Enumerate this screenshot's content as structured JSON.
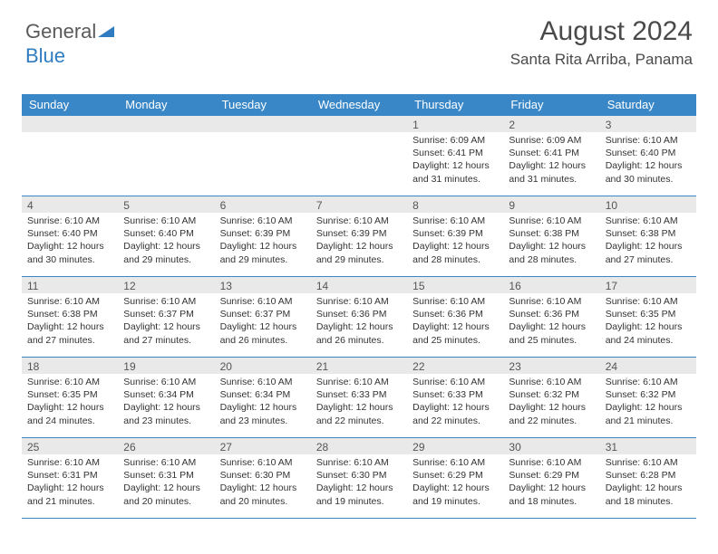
{
  "logo": {
    "text1": "General",
    "text2": "Blue",
    "triangle_color": "#2f7dc0"
  },
  "header": {
    "title": "August 2024",
    "location": "Santa Rita Arriba, Panama"
  },
  "colors": {
    "header_bar": "#3a87c7",
    "daynum_band": "#e9e9e9",
    "row_border": "#3a87c7",
    "text": "#333333"
  },
  "days_of_week": [
    "Sunday",
    "Monday",
    "Tuesday",
    "Wednesday",
    "Thursday",
    "Friday",
    "Saturday"
  ],
  "weeks": [
    [
      {
        "n": "",
        "sr": "",
        "ss": "",
        "dl": ""
      },
      {
        "n": "",
        "sr": "",
        "ss": "",
        "dl": ""
      },
      {
        "n": "",
        "sr": "",
        "ss": "",
        "dl": ""
      },
      {
        "n": "",
        "sr": "",
        "ss": "",
        "dl": ""
      },
      {
        "n": "1",
        "sr": "Sunrise: 6:09 AM",
        "ss": "Sunset: 6:41 PM",
        "dl": "Daylight: 12 hours and 31 minutes."
      },
      {
        "n": "2",
        "sr": "Sunrise: 6:09 AM",
        "ss": "Sunset: 6:41 PM",
        "dl": "Daylight: 12 hours and 31 minutes."
      },
      {
        "n": "3",
        "sr": "Sunrise: 6:10 AM",
        "ss": "Sunset: 6:40 PM",
        "dl": "Daylight: 12 hours and 30 minutes."
      }
    ],
    [
      {
        "n": "4",
        "sr": "Sunrise: 6:10 AM",
        "ss": "Sunset: 6:40 PM",
        "dl": "Daylight: 12 hours and 30 minutes."
      },
      {
        "n": "5",
        "sr": "Sunrise: 6:10 AM",
        "ss": "Sunset: 6:40 PM",
        "dl": "Daylight: 12 hours and 29 minutes."
      },
      {
        "n": "6",
        "sr": "Sunrise: 6:10 AM",
        "ss": "Sunset: 6:39 PM",
        "dl": "Daylight: 12 hours and 29 minutes."
      },
      {
        "n": "7",
        "sr": "Sunrise: 6:10 AM",
        "ss": "Sunset: 6:39 PM",
        "dl": "Daylight: 12 hours and 29 minutes."
      },
      {
        "n": "8",
        "sr": "Sunrise: 6:10 AM",
        "ss": "Sunset: 6:39 PM",
        "dl": "Daylight: 12 hours and 28 minutes."
      },
      {
        "n": "9",
        "sr": "Sunrise: 6:10 AM",
        "ss": "Sunset: 6:38 PM",
        "dl": "Daylight: 12 hours and 28 minutes."
      },
      {
        "n": "10",
        "sr": "Sunrise: 6:10 AM",
        "ss": "Sunset: 6:38 PM",
        "dl": "Daylight: 12 hours and 27 minutes."
      }
    ],
    [
      {
        "n": "11",
        "sr": "Sunrise: 6:10 AM",
        "ss": "Sunset: 6:38 PM",
        "dl": "Daylight: 12 hours and 27 minutes."
      },
      {
        "n": "12",
        "sr": "Sunrise: 6:10 AM",
        "ss": "Sunset: 6:37 PM",
        "dl": "Daylight: 12 hours and 27 minutes."
      },
      {
        "n": "13",
        "sr": "Sunrise: 6:10 AM",
        "ss": "Sunset: 6:37 PM",
        "dl": "Daylight: 12 hours and 26 minutes."
      },
      {
        "n": "14",
        "sr": "Sunrise: 6:10 AM",
        "ss": "Sunset: 6:36 PM",
        "dl": "Daylight: 12 hours and 26 minutes."
      },
      {
        "n": "15",
        "sr": "Sunrise: 6:10 AM",
        "ss": "Sunset: 6:36 PM",
        "dl": "Daylight: 12 hours and 25 minutes."
      },
      {
        "n": "16",
        "sr": "Sunrise: 6:10 AM",
        "ss": "Sunset: 6:36 PM",
        "dl": "Daylight: 12 hours and 25 minutes."
      },
      {
        "n": "17",
        "sr": "Sunrise: 6:10 AM",
        "ss": "Sunset: 6:35 PM",
        "dl": "Daylight: 12 hours and 24 minutes."
      }
    ],
    [
      {
        "n": "18",
        "sr": "Sunrise: 6:10 AM",
        "ss": "Sunset: 6:35 PM",
        "dl": "Daylight: 12 hours and 24 minutes."
      },
      {
        "n": "19",
        "sr": "Sunrise: 6:10 AM",
        "ss": "Sunset: 6:34 PM",
        "dl": "Daylight: 12 hours and 23 minutes."
      },
      {
        "n": "20",
        "sr": "Sunrise: 6:10 AM",
        "ss": "Sunset: 6:34 PM",
        "dl": "Daylight: 12 hours and 23 minutes."
      },
      {
        "n": "21",
        "sr": "Sunrise: 6:10 AM",
        "ss": "Sunset: 6:33 PM",
        "dl": "Daylight: 12 hours and 22 minutes."
      },
      {
        "n": "22",
        "sr": "Sunrise: 6:10 AM",
        "ss": "Sunset: 6:33 PM",
        "dl": "Daylight: 12 hours and 22 minutes."
      },
      {
        "n": "23",
        "sr": "Sunrise: 6:10 AM",
        "ss": "Sunset: 6:32 PM",
        "dl": "Daylight: 12 hours and 22 minutes."
      },
      {
        "n": "24",
        "sr": "Sunrise: 6:10 AM",
        "ss": "Sunset: 6:32 PM",
        "dl": "Daylight: 12 hours and 21 minutes."
      }
    ],
    [
      {
        "n": "25",
        "sr": "Sunrise: 6:10 AM",
        "ss": "Sunset: 6:31 PM",
        "dl": "Daylight: 12 hours and 21 minutes."
      },
      {
        "n": "26",
        "sr": "Sunrise: 6:10 AM",
        "ss": "Sunset: 6:31 PM",
        "dl": "Daylight: 12 hours and 20 minutes."
      },
      {
        "n": "27",
        "sr": "Sunrise: 6:10 AM",
        "ss": "Sunset: 6:30 PM",
        "dl": "Daylight: 12 hours and 20 minutes."
      },
      {
        "n": "28",
        "sr": "Sunrise: 6:10 AM",
        "ss": "Sunset: 6:30 PM",
        "dl": "Daylight: 12 hours and 19 minutes."
      },
      {
        "n": "29",
        "sr": "Sunrise: 6:10 AM",
        "ss": "Sunset: 6:29 PM",
        "dl": "Daylight: 12 hours and 19 minutes."
      },
      {
        "n": "30",
        "sr": "Sunrise: 6:10 AM",
        "ss": "Sunset: 6:29 PM",
        "dl": "Daylight: 12 hours and 18 minutes."
      },
      {
        "n": "31",
        "sr": "Sunrise: 6:10 AM",
        "ss": "Sunset: 6:28 PM",
        "dl": "Daylight: 12 hours and 18 minutes."
      }
    ]
  ]
}
